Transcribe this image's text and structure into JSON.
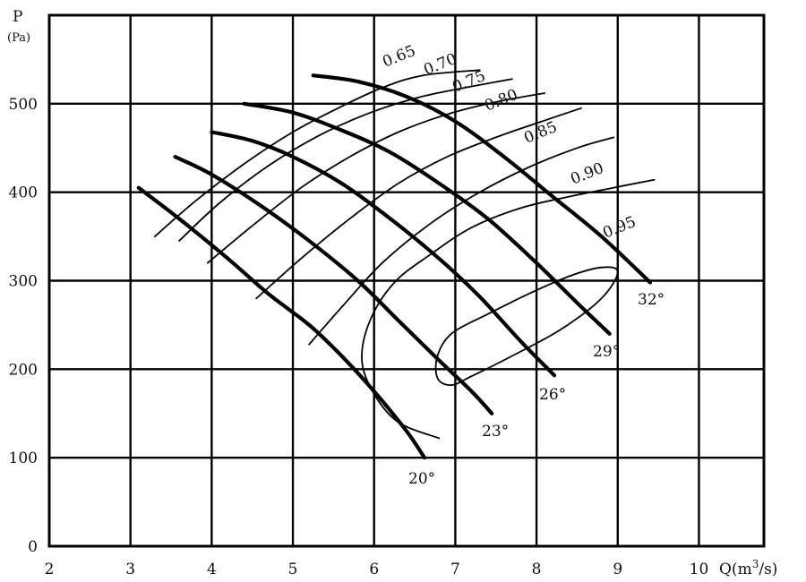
{
  "chart_data": {
    "type": "line",
    "title": "",
    "xlabel": "Q(m³/s)",
    "xlabel_parts": {
      "base": "Q(m",
      "sup": "3",
      "tail": "/s)"
    },
    "ylabel": "P",
    "ylabel_unit": "(Pa)",
    "xlim": [
      2,
      10.8
    ],
    "ylim": [
      0,
      600
    ],
    "x_ticks": [
      "2",
      "3",
      "4",
      "5",
      "6",
      "7",
      "8",
      "9",
      "10"
    ],
    "y_ticks": [
      "0",
      "100",
      "200",
      "300",
      "400",
      "500"
    ],
    "grid": true,
    "blade_angle_curves": [
      {
        "name": "20°",
        "points": [
          [
            3.1,
            405
          ],
          [
            3.6,
            370
          ],
          [
            4.2,
            325
          ],
          [
            4.7,
            285
          ],
          [
            5.2,
            250
          ],
          [
            5.6,
            215
          ],
          [
            6.0,
            175
          ],
          [
            6.4,
            130
          ],
          [
            6.62,
            100
          ]
        ]
      },
      {
        "name": "23°",
        "points": [
          [
            3.55,
            440
          ],
          [
            4.0,
            420
          ],
          [
            4.6,
            385
          ],
          [
            5.2,
            345
          ],
          [
            5.8,
            300
          ],
          [
            6.3,
            255
          ],
          [
            6.8,
            210
          ],
          [
            7.2,
            175
          ],
          [
            7.45,
            150
          ]
        ]
      },
      {
        "name": "26°",
        "points": [
          [
            4.0,
            468
          ],
          [
            4.5,
            458
          ],
          [
            5.0,
            440
          ],
          [
            5.6,
            410
          ],
          [
            6.2,
            370
          ],
          [
            6.8,
            325
          ],
          [
            7.3,
            282
          ],
          [
            7.8,
            232
          ],
          [
            8.22,
            193
          ]
        ]
      },
      {
        "name": "29°",
        "points": [
          [
            4.4,
            500
          ],
          [
            5.0,
            490
          ],
          [
            5.6,
            470
          ],
          [
            6.2,
            445
          ],
          [
            6.8,
            410
          ],
          [
            7.4,
            370
          ],
          [
            8.0,
            320
          ],
          [
            8.5,
            275
          ],
          [
            8.9,
            240
          ]
        ]
      },
      {
        "name": "32°",
        "points": [
          [
            5.25,
            532
          ],
          [
            5.8,
            525
          ],
          [
            6.4,
            508
          ],
          [
            7.0,
            480
          ],
          [
            7.6,
            440
          ],
          [
            8.2,
            395
          ],
          [
            8.8,
            350
          ],
          [
            9.4,
            298
          ]
        ]
      }
    ],
    "efficiency_curves": [
      {
        "name": "0.65",
        "points": [
          [
            3.3,
            350
          ],
          [
            3.8,
            390
          ],
          [
            4.4,
            432
          ],
          [
            5.0,
            468
          ],
          [
            5.6,
            497
          ],
          [
            6.1,
            518
          ],
          [
            6.6,
            532
          ],
          [
            7.3,
            538
          ]
        ]
      },
      {
        "name": "0.70",
        "points": [
          [
            3.6,
            345
          ],
          [
            4.1,
            388
          ],
          [
            4.7,
            430
          ],
          [
            5.3,
            463
          ],
          [
            5.9,
            488
          ],
          [
            6.5,
            506
          ],
          [
            7.0,
            516
          ],
          [
            7.7,
            528
          ]
        ]
      },
      {
        "name": "0.75",
        "points": [
          [
            3.95,
            320
          ],
          [
            4.5,
            362
          ],
          [
            5.1,
            405
          ],
          [
            5.7,
            440
          ],
          [
            6.3,
            468
          ],
          [
            6.9,
            488
          ],
          [
            7.5,
            502
          ],
          [
            8.1,
            512
          ]
        ]
      },
      {
        "name": "0.80",
        "points": [
          [
            4.55,
            280
          ],
          [
            5.1,
            325
          ],
          [
            5.7,
            370
          ],
          [
            6.3,
            410
          ],
          [
            6.9,
            440
          ],
          [
            7.5,
            462
          ],
          [
            8.0,
            478
          ],
          [
            8.55,
            495
          ]
        ]
      },
      {
        "name": "0.85",
        "points": [
          [
            5.2,
            228
          ],
          [
            5.6,
            270
          ],
          [
            6.1,
            320
          ],
          [
            6.7,
            365
          ],
          [
            7.3,
            400
          ],
          [
            7.9,
            428
          ],
          [
            8.5,
            450
          ],
          [
            8.95,
            462
          ]
        ]
      },
      {
        "name": "0.90",
        "points": [
          [
            6.8,
            122
          ],
          [
            6.3,
            140
          ],
          [
            6.0,
            172
          ],
          [
            5.85,
            210
          ],
          [
            5.95,
            255
          ],
          [
            6.25,
            298
          ],
          [
            6.7,
            330
          ],
          [
            7.2,
            360
          ],
          [
            7.8,
            382
          ],
          [
            8.4,
            395
          ],
          [
            9.0,
            406
          ],
          [
            9.45,
            414
          ]
        ]
      },
      {
        "name": "0.95",
        "points": [
          [
            7.35,
            260
          ],
          [
            7.9,
            285
          ],
          [
            8.4,
            305
          ],
          [
            8.8,
            315
          ],
          [
            9.0,
            310
          ],
          [
            8.8,
            280
          ],
          [
            8.3,
            245
          ],
          [
            7.7,
            215
          ],
          [
            7.2,
            192
          ],
          [
            6.95,
            182
          ],
          [
            6.78,
            190
          ],
          [
            6.78,
            215
          ],
          [
            6.95,
            240
          ],
          [
            7.35,
            260
          ]
        ]
      }
    ]
  }
}
